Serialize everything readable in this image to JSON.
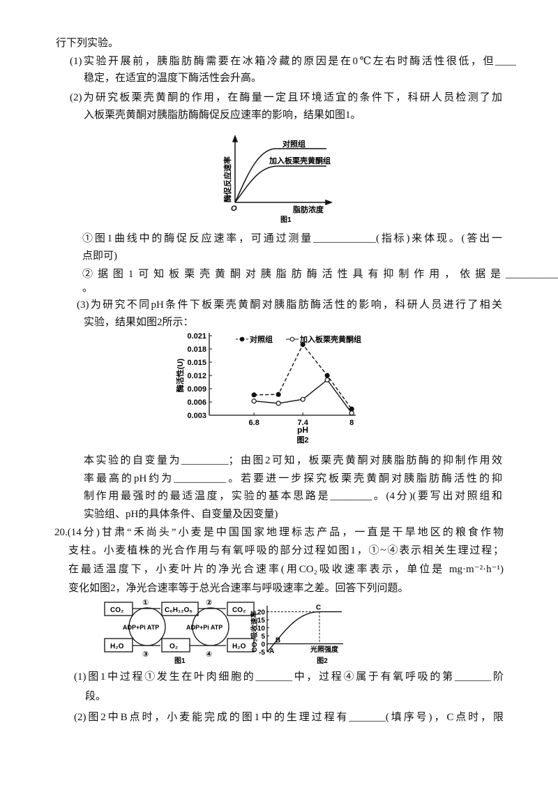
{
  "lines": [
    "行下列实验。",
    "(1)实验开展前，胰脂肪酶需要在冰箱冷藏的原因是在0℃左右时酶活性很低，但____",
    "稳定，在适宜的温度下酶活性会升高。",
    "(2)为研究板栗壳黄酮的作用，在酶量一定且环境适宜的条件下，科研人员检测了加",
    "入板栗壳黄酮对胰脂肪酶酶促反应速率的影响，结果如图1。",
    "①图1曲线中的酶促反应速率，可通过测量____________(指标)来体现。(答出一",
    "点即可)",
    "②据图1可知板栗壳黄酮对胰脂肪酶活性具有抑制作用，依据是__________",
    "。",
    "(3)为研究不同pH条件下板栗壳黄酮对胰脂肪酶活性的影响，科研人员进行了相关",
    "实验，结果如图2所示：",
    "本实验的自变量为_________；由图2可知，板栗壳黄酮对胰脂肪酶的抑制作用效",
    "率最高的pH约为__________。若要进一步探究板栗壳黄酮对胰脂肪酶活性的抑",
    "制作用最强时的最适温度，实验的基本思路是________。(4分)(要写出对照组和",
    "实验组、pH的具体条件、自变量及因变量)",
    "20.(14分)甘肃“禾尚头”小麦是中国国家地理标志产品，一直是干旱地区的粮食作物",
    "支柱。小麦植株的光合作用与有氧呼吸的部分过程如图1，①~④表示相关生理过程；",
    "在最适温度下，小麦叶片的净光合速率(用CO₂吸收速率表示，单位是 mg·m⁻²·h⁻¹)",
    "变化如图2，净光合速率等于总光合速率与呼吸速率之差。回答下列问题。",
    "(1)图1中过程①发生在叶肉细胞的_______中，过程④属于有氧呼吸的第_______阶",
    "段。",
    "(2)图2中B点时，小麦能完成的图1中的生理过程有_______(填序号)，C点时，限"
  ],
  "q19_fig1": {
    "series_labels": [
      "对照组",
      "加入板栗壳黄酮组"
    ],
    "ylabel": "酶促反应速率",
    "origin": "O",
    "xlabel": "脂肪浓度",
    "caption": "图1"
  },
  "q19_fig2": {
    "type": "line",
    "ylabel": "酶活性(U)",
    "xlabel": "pH",
    "caption": "图2",
    "x": [
      6.8,
      7.1,
      7.4,
      7.7,
      8.0
    ],
    "series": [
      {
        "name": "对照组",
        "color": "#111111",
        "dashed": true,
        "filled": true,
        "values": [
          0.0076,
          0.0077,
          0.019,
          0.012,
          0.0044
        ]
      },
      {
        "name": "加入板栗壳黄酮组",
        "color": "#111111",
        "dashed": false,
        "filled": false,
        "values": [
          0.0062,
          0.0057,
          0.0066,
          0.011,
          0.0035
        ]
      }
    ],
    "xlim": [
      6.25,
      8.05
    ],
    "xticks": [
      6.8,
      7.4,
      8
    ],
    "ylim": [
      0.003,
      0.021
    ],
    "yticks": [
      0.003,
      0.006,
      0.009,
      0.012,
      0.015,
      0.018,
      0.021
    ]
  },
  "q20_fig1": {
    "boxes": [
      "CO₂",
      "C₆H₁₂O₆",
      "CO₂",
      "H₂O",
      "O₂",
      "H₂O"
    ],
    "steps": [
      "①",
      "②",
      "③",
      "④"
    ],
    "energy": [
      "ADP+Pi ATP",
      "ADP+Pi ATP"
    ],
    "caption": "图1"
  },
  "q20_fig2": {
    "ylabel": "CO₂吸收速率",
    "xlabel": "光照强度",
    "caption": "图2",
    "points": [
      "A",
      "B",
      "C"
    ],
    "ylim": [
      -5,
      22
    ],
    "yticks": [
      20,
      15,
      10,
      5,
      0,
      -5
    ]
  }
}
